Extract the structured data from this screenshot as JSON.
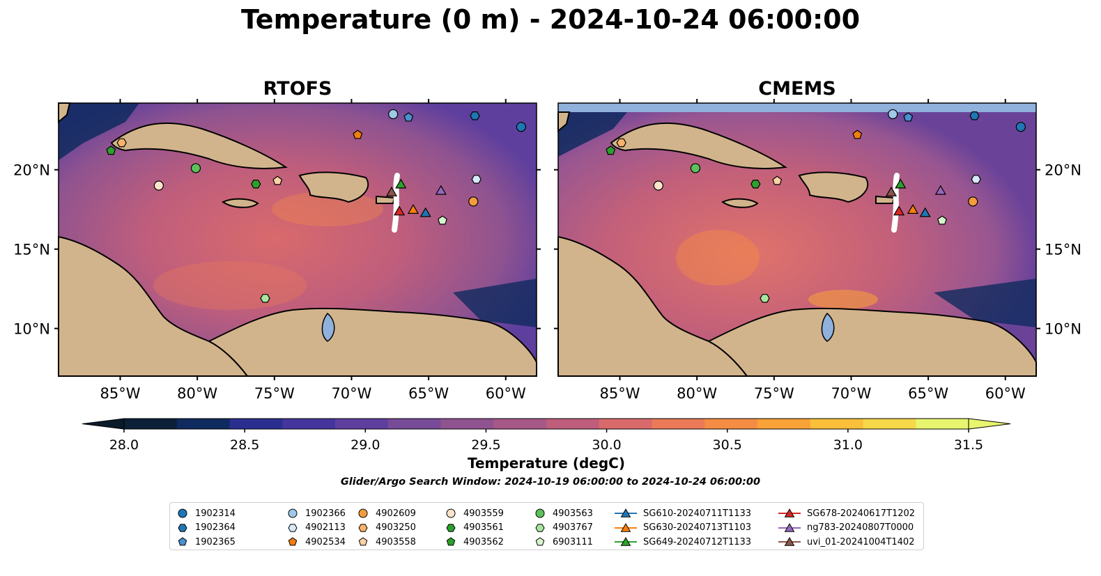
{
  "figure": {
    "title": "Temperature (0 m) - 2024-10-24 06:00:00",
    "panels": [
      {
        "title": "RTOFS"
      },
      {
        "title": "CMEMS"
      }
    ],
    "colorbar": {
      "label": "Temperature (degC)",
      "ticks": [
        "28.0",
        "28.5",
        "29.0",
        "29.5",
        "30.0",
        "30.5",
        "31.0",
        "31.5"
      ],
      "min": 28.0,
      "max": 31.5,
      "step": 0.25,
      "extend": "both",
      "colors": [
        "#0c2038",
        "#0f2a5e",
        "#2a2f8f",
        "#44359c",
        "#5e3f9e",
        "#784b98",
        "#8f5390",
        "#a65888",
        "#bf5e7c",
        "#d96a6c",
        "#ea7a58",
        "#f58c44",
        "#f9a237",
        "#fbbf3a",
        "#f6d84a",
        "#e8f56e"
      ],
      "under_color": "#0a1a2a",
      "over_color": "#e8f56e"
    },
    "subtitle": "Glider/Argo Search Window: 2024-10-19 06:00:00 to 2024-10-24 06:00:00",
    "lon_ticks": [
      "85°W",
      "80°W",
      "75°W",
      "70°W",
      "65°W",
      "60°W"
    ],
    "lat_ticks": [
      "20°N",
      "15°N",
      "10°N"
    ],
    "map_extent": {
      "lon_min": -89,
      "lon_max": -58,
      "lat_min": 7,
      "lat_max": 24.2
    },
    "land_color": "#d2b48c",
    "water_body_color": "#8fb1dc"
  },
  "legend": [
    {
      "label": "1902314",
      "marker": "circle",
      "color": "#1f77b4"
    },
    {
      "label": "1902364",
      "marker": "hexagon",
      "color": "#1f77b4"
    },
    {
      "label": "1902365",
      "marker": "pentagon",
      "color": "#4a8fcf"
    },
    {
      "label": "1902366",
      "marker": "circle",
      "color": "#9fc7e8"
    },
    {
      "label": "4902113",
      "marker": "hexagon",
      "color": "#d6e9f8"
    },
    {
      "label": "4902534",
      "marker": "pentagon",
      "color": "#f07f0f"
    },
    {
      "label": "4902609",
      "marker": "circle",
      "color": "#f39c3c"
    },
    {
      "label": "4903250",
      "marker": "hexagon",
      "color": "#f8b26a"
    },
    {
      "label": "4903558",
      "marker": "pentagon",
      "color": "#fcd2a6"
    },
    {
      "label": "4903559",
      "marker": "circle",
      "color": "#fde3cc"
    },
    {
      "label": "4903561",
      "marker": "hexagon",
      "color": "#2ca02c"
    },
    {
      "label": "4903562",
      "marker": "pentagon",
      "color": "#2ca02c"
    },
    {
      "label": "4903563",
      "marker": "circle",
      "color": "#5cc15c"
    },
    {
      "label": "4903767",
      "marker": "hexagon",
      "color": "#a8e6a0"
    },
    {
      "label": "6903111",
      "marker": "pentagon",
      "color": "#d6f5cf"
    },
    {
      "label": "SG610-20240711T1133",
      "marker": "triangle",
      "color": "#1f77b4"
    },
    {
      "label": "SG630-20240713T1103",
      "marker": "triangle",
      "color": "#ff7f0e"
    },
    {
      "label": "SG649-20240712T1133",
      "marker": "triangle",
      "color": "#2ca02c"
    },
    {
      "label": "SG678-20240617T1202",
      "marker": "triangle",
      "color": "#d62728"
    },
    {
      "label": "ng783-20240807T0000",
      "marker": "triangle",
      "color": "#9467bd"
    },
    {
      "label": "uvi_01-20241004T1402",
      "marker": "triangle",
      "color": "#8c564b"
    }
  ],
  "observations": [
    {
      "id": "1902314",
      "lon": -59.0,
      "lat": 22.7
    },
    {
      "id": "1902364",
      "lon": -62.0,
      "lat": 23.4
    },
    {
      "id": "1902365",
      "lon": -66.3,
      "lat": 23.3
    },
    {
      "id": "1902366",
      "lon": -67.3,
      "lat": 23.5
    },
    {
      "id": "4902113",
      "lon": -61.9,
      "lat": 19.4
    },
    {
      "id": "4902534",
      "lon": -69.6,
      "lat": 22.2
    },
    {
      "id": "4902609",
      "lon": -62.1,
      "lat": 18.0
    },
    {
      "id": "4903250",
      "lon": -84.9,
      "lat": 21.7
    },
    {
      "id": "4903558",
      "lon": -74.8,
      "lat": 19.3
    },
    {
      "id": "4903559",
      "lon": -82.5,
      "lat": 19.0
    },
    {
      "id": "4903561",
      "lon": -76.2,
      "lat": 19.1
    },
    {
      "id": "4903562",
      "lon": -85.6,
      "lat": 21.2
    },
    {
      "id": "4903563",
      "lon": -80.1,
      "lat": 20.1
    },
    {
      "id": "4903767",
      "lon": -75.6,
      "lat": 11.9
    },
    {
      "id": "6903111",
      "lon": -64.1,
      "lat": 16.8
    },
    {
      "id": "SG610-20240711T1133",
      "lon": -65.2,
      "lat": 17.3
    },
    {
      "id": "SG630-20240713T1103",
      "lon": -66.0,
      "lat": 17.5
    },
    {
      "id": "SG649-20240712T1133",
      "lon": -66.8,
      "lat": 19.1
    },
    {
      "id": "SG678-20240617T1202",
      "lon": -66.9,
      "lat": 17.4
    },
    {
      "id": "ng783-20240807T0000",
      "lon": -64.2,
      "lat": 18.7
    },
    {
      "id": "uvi_01-20241004T1402",
      "lon": -67.4,
      "lat": 18.6
    }
  ]
}
